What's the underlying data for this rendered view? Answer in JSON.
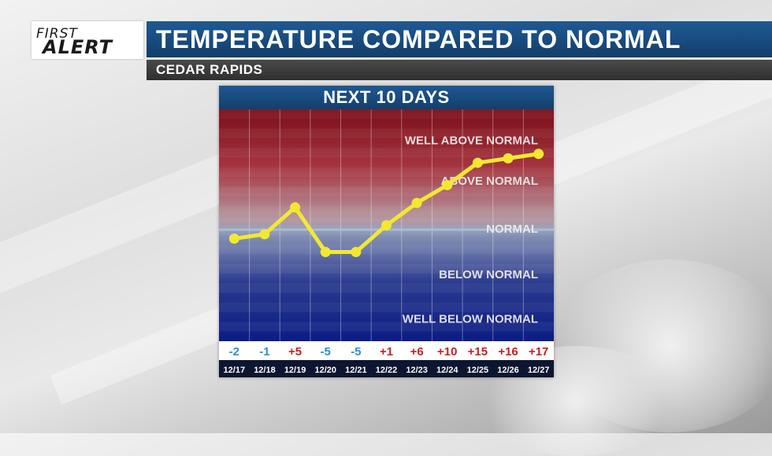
{
  "logo": {
    "line1": "FIRST",
    "line2": "ALERT"
  },
  "title": "TEMPERATURE COMPARED TO NORMAL",
  "subtitle": "CEDAR RAPIDS",
  "colors": {
    "title_bar": "#1a4d82",
    "line": "#f2e832",
    "positive_label": "#c81e1e",
    "negative_label": "#2a8fd6",
    "date_bar": "#0d1630",
    "normal_line": "#a9bcd6"
  },
  "chart_data": {
    "type": "line",
    "title": "NEXT 10 DAYS",
    "categories": [
      "12/17",
      "12/18",
      "12/19",
      "12/20",
      "12/21",
      "12/22",
      "12/23",
      "12/24",
      "12/25",
      "12/26",
      "12/27"
    ],
    "values": [
      -2,
      -1,
      5,
      -5,
      -5,
      1,
      6,
      10,
      15,
      16,
      17
    ],
    "value_labels": [
      "-2",
      "-1",
      "+5",
      "-5",
      "-5",
      "+1",
      "+6",
      "+10",
      "+15",
      "+16",
      "+17"
    ],
    "zones": [
      "WELL ABOVE NORMAL",
      "ABOVE NORMAL",
      "NORMAL",
      "BELOW NORMAL",
      "WELL BELOW NORMAL"
    ],
    "ylim": [
      -25,
      27
    ],
    "normal_value": 0,
    "grid": true
  }
}
